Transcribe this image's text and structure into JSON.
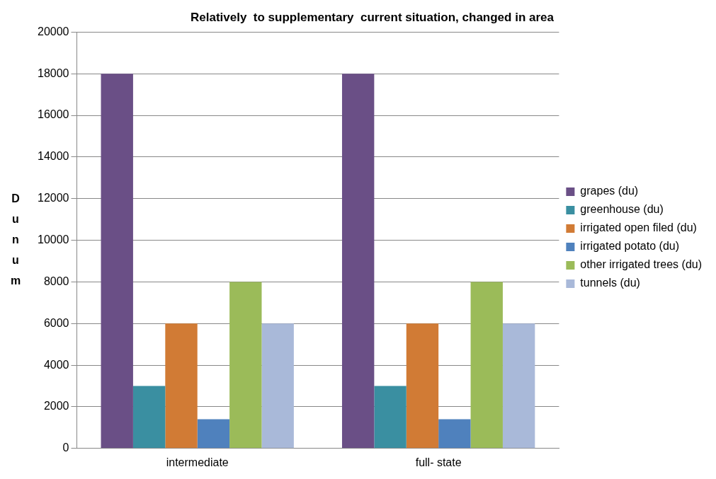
{
  "chart_data": {
    "type": "bar",
    "title": "Relatively  to supplementary  current situation, changed in area",
    "ylabel": "Dunum",
    "categories": [
      "intermediate",
      "full- state"
    ],
    "series": [
      {
        "name": "grapes (du)",
        "color": "#6a4f86",
        "values": [
          18000,
          18000
        ]
      },
      {
        "name": "greenhouse (du)",
        "color": "#3a8fa1",
        "values": [
          3000,
          3000
        ]
      },
      {
        "name": "irrigated open filed (du)",
        "color": "#d17b35",
        "values": [
          6000,
          6000
        ]
      },
      {
        "name": "irrigated potato (du)",
        "color": "#4f81bd",
        "values": [
          1400,
          1400
        ]
      },
      {
        "name": "other irrigated trees (du)",
        "color": "#9bbb59",
        "values": [
          8000,
          8000
        ]
      },
      {
        "name": "tunnels (du)",
        "color": "#a9b9d9",
        "values": [
          6000,
          6000
        ]
      }
    ],
    "ylim": [
      0,
      20000
    ],
    "yticks": [
      0,
      2000,
      4000,
      6000,
      8000,
      10000,
      12000,
      14000,
      16000,
      18000,
      20000
    ],
    "grid": "y",
    "legend": "right"
  }
}
